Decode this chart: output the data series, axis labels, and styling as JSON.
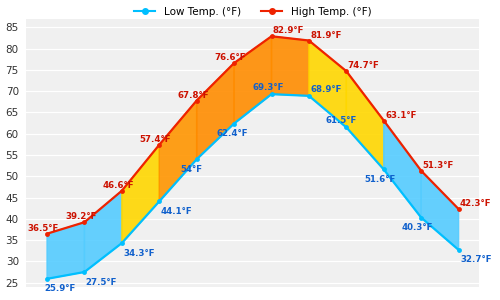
{
  "low_temps": [
    25.9,
    27.5,
    34.3,
    44.1,
    54.0,
    62.4,
    69.3,
    68.9,
    61.5,
    51.6,
    40.3,
    32.7
  ],
  "high_temps": [
    36.5,
    39.2,
    46.6,
    57.4,
    67.8,
    76.6,
    82.9,
    81.9,
    74.7,
    63.1,
    51.3,
    42.3
  ],
  "low_labels": [
    "25.9°F",
    "27.5°F",
    "34.3°F",
    "44.1°F",
    "54°F",
    "62.4°F",
    "69.3°F",
    "68.9°F",
    "61.5°F",
    "51.6°F",
    "40.3°F",
    "32.7°F"
  ],
  "high_labels": [
    "36.5°F",
    "39.2°F",
    "46.6°F",
    "57.4°F",
    "67.8°F",
    "76.6°F",
    "82.9°F",
    "81.9°F",
    "74.7°F",
    "63.1°F",
    "51.3°F",
    "42.3°F"
  ],
  "ylim": [
    24,
    87
  ],
  "yticks": [
    25,
    30,
    35,
    40,
    45,
    50,
    55,
    60,
    65,
    70,
    75,
    80,
    85
  ],
  "low_color": "#00BFFF",
  "high_color": "#EE2200",
  "bg_color": "#F0F0F0",
  "legend_low": "Low Temp. (°F)",
  "legend_high": "High Temp. (°F)",
  "color_orange": "#FF8C00",
  "color_yellow": "#FFD700",
  "color_lightblue": "#55CCFF",
  "figsize": [
    5.0,
    3.0
  ],
  "dpi": 100
}
